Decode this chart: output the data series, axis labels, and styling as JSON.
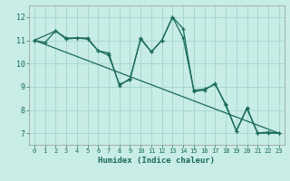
{
  "xlabel": "Humidex (Indice chaleur)",
  "xlim": [
    -0.5,
    23.5
  ],
  "ylim": [
    6.5,
    12.5
  ],
  "xticks": [
    0,
    1,
    2,
    3,
    4,
    5,
    6,
    7,
    8,
    9,
    10,
    11,
    12,
    13,
    14,
    15,
    16,
    17,
    18,
    19,
    20,
    21,
    22,
    23
  ],
  "yticks": [
    7,
    8,
    9,
    10,
    11,
    12
  ],
  "background_color": "#c8ece6",
  "grid_color": "#a8d8d0",
  "line_color": "#1a6b5a",
  "line1_x": [
    0,
    1,
    2,
    3,
    4,
    5,
    6,
    7,
    8,
    9,
    10,
    11,
    12,
    13,
    14,
    15,
    16,
    17,
    18,
    19,
    20,
    21,
    22,
    23
  ],
  "line1_y": [
    11.0,
    10.9,
    11.4,
    11.1,
    11.1,
    11.05,
    10.55,
    10.45,
    9.05,
    9.35,
    11.05,
    10.5,
    11.0,
    12.0,
    11.1,
    8.85,
    8.9,
    9.1,
    8.25,
    7.1,
    8.05,
    7.0,
    7.0,
    7.0
  ],
  "line2_x": [
    0,
    2,
    3,
    4,
    5,
    6,
    7,
    8,
    9,
    10,
    11,
    12,
    13,
    14,
    15,
    16,
    17,
    18,
    19,
    20,
    21,
    22,
    23
  ],
  "line2_y": [
    11.0,
    11.4,
    11.05,
    11.1,
    11.1,
    10.55,
    10.35,
    9.1,
    9.3,
    11.1,
    10.5,
    11.0,
    12.0,
    11.5,
    8.8,
    8.85,
    9.15,
    8.2,
    7.1,
    8.1,
    7.0,
    7.05,
    7.0
  ],
  "line3_x": [
    0,
    23
  ],
  "line3_y": [
    11.0,
    7.0
  ]
}
